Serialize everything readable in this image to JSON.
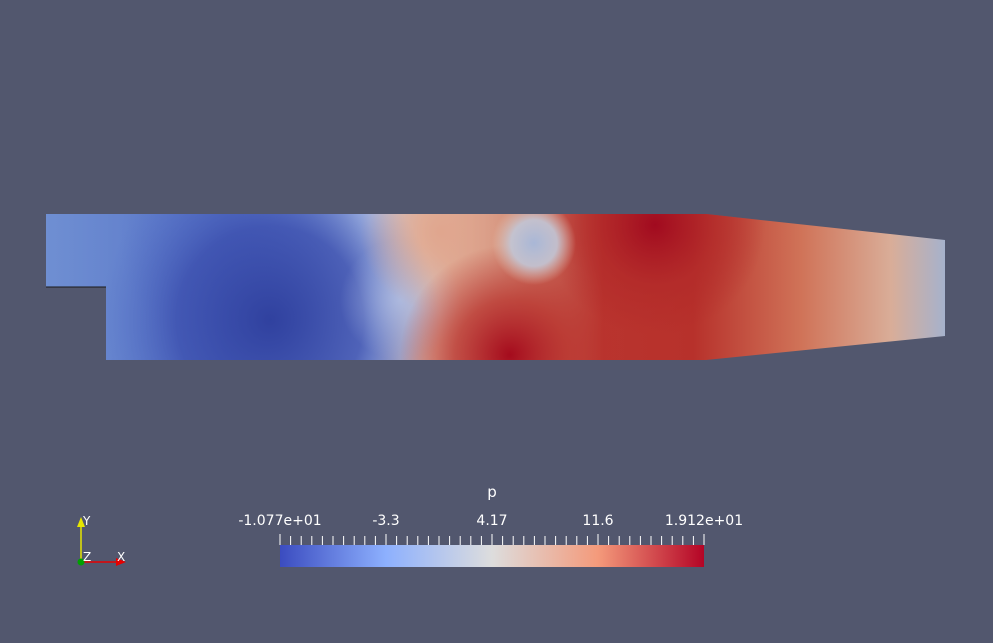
{
  "colorbar": {
    "title": "p",
    "labels": [
      "-1.077e+01",
      "-3.3",
      "4.17",
      "11.6",
      "1.912e+01"
    ],
    "range": [
      -10.77,
      19.12
    ],
    "colormap": "cool-to-warm",
    "colors": {
      "low": "#3b4cc0",
      "mid": "#dddddd",
      "high": "#b40426"
    }
  },
  "axes_triad": {
    "y_label": "Y",
    "z_label": "Z",
    "x_label": "X",
    "y_color": "#e6e600",
    "x_color": "#e60000",
    "z_color": "#00a000"
  },
  "background_color": "#52576e"
}
